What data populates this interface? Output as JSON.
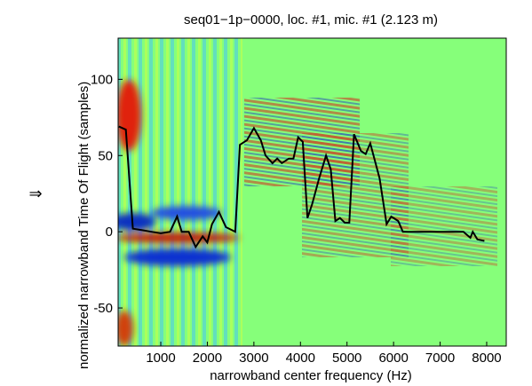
{
  "chart_data": {
    "type": "line",
    "title": "seq01−1p−0000, loc. #1, mic. #1 (2.123 m)",
    "xlabel": "narrowband center frequency (Hz)",
    "ylabel": "normalized narrowband Time Of Flight (samples)",
    "annotation": "⇒",
    "color": "#000000",
    "x": [
      100,
      250,
      400,
      600,
      800,
      1000,
      1200,
      1350,
      1450,
      1600,
      1750,
      1900,
      2000,
      2100,
      2250,
      2400,
      2600,
      2700,
      2850,
      3000,
      3150,
      3250,
      3400,
      3500,
      3600,
      3750,
      3850,
      3950,
      4050,
      4150,
      4250,
      4400,
      4550,
      4650,
      4750,
      4850,
      4950,
      5050,
      5150,
      5300,
      5400,
      5500,
      5700,
      5850,
      5950,
      6100,
      6200,
      6500,
      7000,
      7500,
      7650,
      7700,
      7800,
      7950
    ],
    "values": [
      69,
      67,
      2,
      1,
      0,
      -1,
      0,
      10,
      0,
      0,
      -10,
      -3,
      -7,
      5,
      13,
      3,
      0,
      57,
      60,
      68,
      60,
      50,
      45,
      48,
      45,
      48,
      48,
      62,
      59,
      9,
      18,
      35,
      50,
      41,
      7,
      9,
      6,
      6,
      64,
      53,
      51,
      58,
      35,
      5,
      10,
      7,
      0,
      0,
      0,
      0,
      -4,
      0,
      -5,
      -6
    ],
    "xlim": [
      84,
      8420
    ],
    "ylim": [
      -75,
      127
    ],
    "xticks": [
      1000,
      2000,
      3000,
      4000,
      5000,
      6000,
      7000,
      8000
    ],
    "yticks": [
      -50,
      0,
      50,
      100
    ]
  }
}
